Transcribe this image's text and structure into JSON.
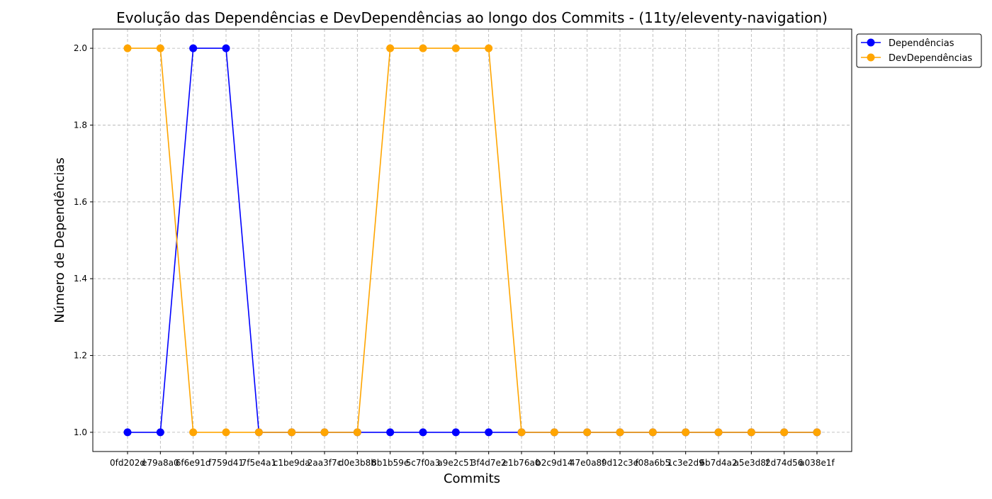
{
  "chart_data": {
    "type": "line",
    "title": "Evolução das Dependências e DevDependências ao longo dos Commits - (11ty/eleventy-navigation)",
    "xlabel": "Commits",
    "ylabel": "Número de Dependências",
    "ylim": [
      0.95,
      2.05
    ],
    "yticks": [
      "1.0",
      "1.2",
      "1.4",
      "1.6",
      "1.8",
      "2.0"
    ],
    "grid": true,
    "legend_position": "upper-right-outside",
    "categories": [
      "0fd202d",
      "e79a8a0",
      "6f6e91d",
      "f759d41",
      "7f5e4a1",
      "c1be9da",
      "2aa3f7c",
      "d0e3b8b",
      "8b1b59e",
      "5c7f0a3",
      "a9e2c51",
      "3f4d7e2",
      "e1b76a0",
      "b2c9d14",
      "47e0a8f",
      "9d12c3e",
      "f08a6b5",
      "1c3e2d9",
      "6b7d4a2",
      "a5e3d8f",
      "2d74d56",
      "a038e1f"
    ],
    "series": [
      {
        "name": "Dependências",
        "color": "#0000ff",
        "values": [
          1,
          1,
          2,
          2,
          1,
          1,
          1,
          1,
          1,
          1,
          1,
          1,
          1,
          1,
          1,
          1,
          1,
          1,
          1,
          1,
          1,
          1
        ]
      },
      {
        "name": "DevDependências",
        "color": "#ffa500",
        "values": [
          2,
          2,
          1,
          1,
          1,
          1,
          1,
          1,
          2,
          2,
          2,
          2,
          1,
          1,
          1,
          1,
          1,
          1,
          1,
          1,
          1,
          1
        ]
      }
    ]
  }
}
